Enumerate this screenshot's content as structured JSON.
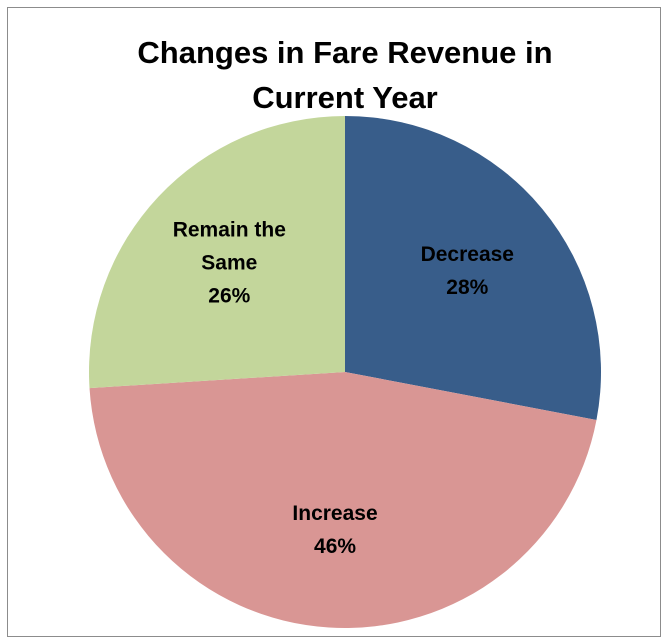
{
  "chart_data": {
    "type": "pie",
    "title": "Changes in Fare Revenue in Current Year",
    "categories": [
      "Decrease",
      "Increase",
      "Remain the Same"
    ],
    "values": [
      28,
      46,
      26
    ],
    "value_labels": [
      "28%",
      "46%",
      "26%"
    ],
    "colors": [
      "#385d8a",
      "#d99694",
      "#c3d69b"
    ]
  }
}
